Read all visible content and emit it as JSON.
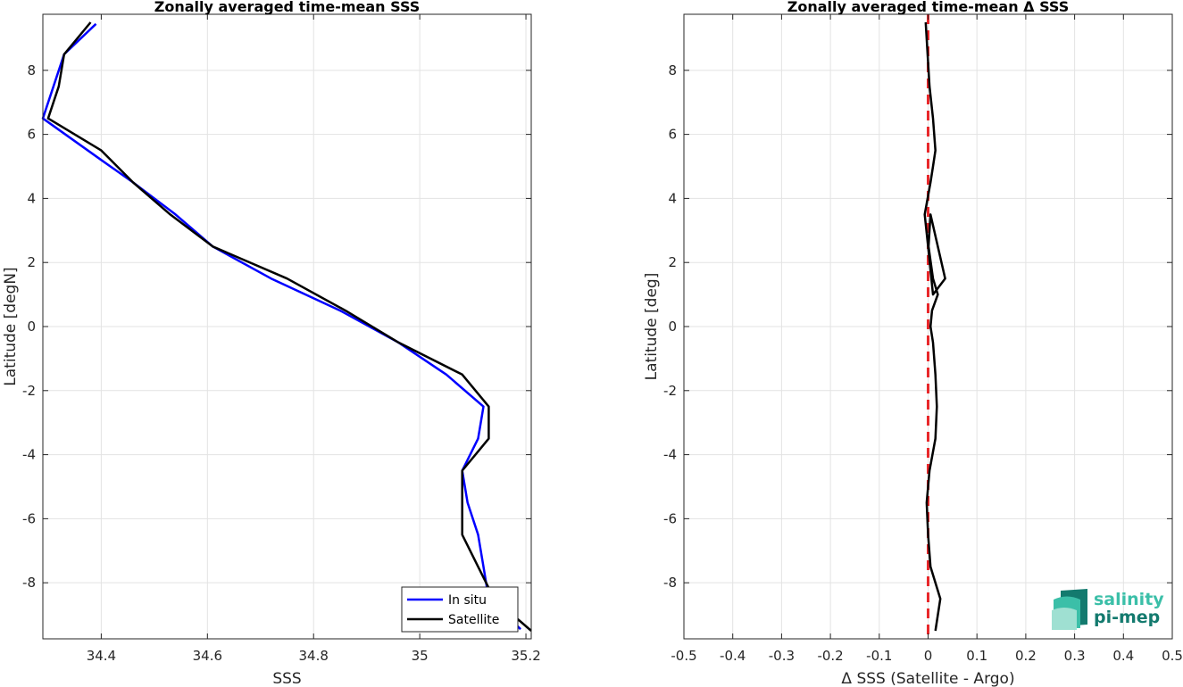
{
  "chart_data": [
    {
      "type": "line",
      "title": "Zonally averaged time-mean SSS",
      "xlabel": "SSS",
      "ylabel": "Latitude [degN]",
      "xlim": [
        34.29,
        35.21
      ],
      "ylim": [
        -9.75,
        9.75
      ],
      "xticks": [
        34.4,
        34.6,
        34.8,
        35,
        35.2
      ],
      "xtick_labels": [
        "34.4",
        "34.6",
        "34.8",
        "35",
        "35.2"
      ],
      "yticks": [
        -8,
        -6,
        -4,
        -2,
        0,
        2,
        4,
        6,
        8
      ],
      "ytick_labels": [
        "-8",
        "-6",
        "-4",
        "-2",
        "0",
        "2",
        "4",
        "6",
        "8"
      ],
      "grid": true,
      "legend": "bottom-right",
      "series": [
        {
          "name": "In situ",
          "color": "#0000ff",
          "x": [
            35.19,
            35.13,
            35.12,
            35.11,
            35.09,
            35.08,
            35.11,
            35.12,
            35.05,
            34.96,
            34.85,
            34.72,
            34.61,
            34.54,
            34.46,
            34.4,
            34.29,
            34.31,
            34.33,
            34.39
          ],
          "y": [
            -9.45,
            -8.5,
            -7.5,
            -6.5,
            -5.5,
            -4.5,
            -3.5,
            -2.5,
            -1.5,
            -0.5,
            0.5,
            1.5,
            2.5,
            3.5,
            4.5,
            5.2,
            6.5,
            7.5,
            8.5,
            9.45
          ]
        },
        {
          "name": "Satellite",
          "color": "#000000",
          "x": [
            35.21,
            35.14,
            35.11,
            35.08,
            35.08,
            35.08,
            35.13,
            35.13,
            35.08,
            34.96,
            34.86,
            34.75,
            34.61,
            34.53,
            34.46,
            34.4,
            34.3,
            34.32,
            34.33,
            34.38
          ],
          "y": [
            -9.5,
            -8.5,
            -7.5,
            -6.5,
            -5.5,
            -4.5,
            -3.5,
            -2.5,
            -1.5,
            -0.5,
            0.5,
            1.5,
            2.5,
            3.5,
            4.5,
            5.5,
            6.5,
            7.5,
            8.5,
            9.5
          ]
        }
      ]
    },
    {
      "type": "line",
      "title": "Zonally averaged time-mean Δ SSS",
      "xlabel": "Δ SSS (Satellite - Argo)",
      "ylabel": "Latitude [deg]",
      "xlim": [
        -0.5,
        0.5
      ],
      "ylim": [
        -9.75,
        9.75
      ],
      "xticks": [
        -0.5,
        -0.4,
        -0.3,
        -0.2,
        -0.1,
        0,
        0.1,
        0.2,
        0.3,
        0.4,
        0.5
      ],
      "xtick_labels": [
        "-0.5",
        "-0.4",
        "-0.3",
        "-0.2",
        "-0.1",
        "0",
        "0.1",
        "0.2",
        "0.3",
        "0.4",
        "0.5"
      ],
      "yticks": [
        -8,
        -6,
        -4,
        -2,
        0,
        2,
        4,
        6,
        8
      ],
      "ytick_labels": [
        "-8",
        "-6",
        "-4",
        "-2",
        "0",
        "2",
        "4",
        "6",
        "8"
      ],
      "grid": true,
      "zero_line_color": "#e8282b",
      "series": [
        {
          "color": "#000000",
          "x": [
            0.015,
            0.025,
            0.005,
            0.0,
            -0.003,
            0.003,
            0.015,
            0.018,
            0.015,
            0.01,
            0.005,
            0.008,
            0.02,
            0.01,
            0.001,
            0.005,
            0.035,
            0.01,
            0.0,
            -0.007,
            0.005,
            0.01,
            0.015,
            0.01,
            0.003,
            -0.005
          ],
          "y": [
            -9.5,
            -8.5,
            -7.5,
            -6.5,
            -5.5,
            -4.5,
            -3.5,
            -2.5,
            -1.5,
            -0.5,
            0.0,
            0.5,
            1.0,
            1.5,
            2.5,
            3.5,
            1.5,
            1.0,
            2.5,
            3.5,
            4.5,
            5.0,
            5.5,
            6.5,
            7.5,
            9.5
          ]
        }
      ]
    }
  ],
  "logo": {
    "line1": "salinity",
    "line2": "pi-mep"
  },
  "colors": {
    "in_situ": "#0000ff",
    "satellite": "#000000",
    "zero_line": "#e8282b",
    "logo_light": "#3bbfa8",
    "logo_dark": "#137a6e"
  }
}
